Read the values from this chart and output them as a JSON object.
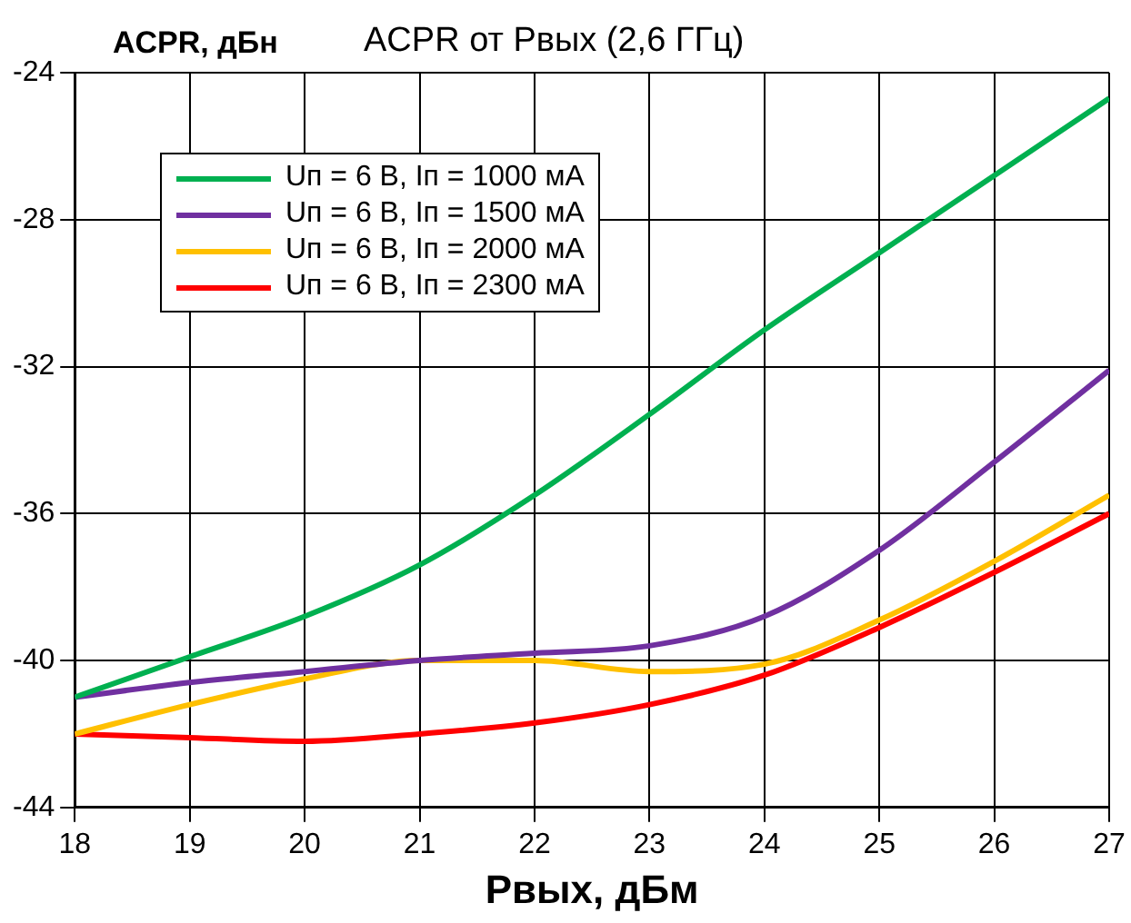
{
  "chart_data": {
    "type": "line",
    "title": "ACPR от Pвых (2,6 ГГц)",
    "ylabel": "ACPR, дБн",
    "xlabel": "Pвых, дБм",
    "x": [
      18,
      19,
      20,
      21,
      22,
      23,
      24,
      25,
      26,
      27
    ],
    "xlim": [
      18,
      27
    ],
    "xticks": [
      18,
      19,
      20,
      21,
      22,
      23,
      24,
      25,
      26,
      27
    ],
    "ylim": [
      -44,
      -24
    ],
    "yticks": [
      -44,
      -40,
      -36,
      -32,
      -28,
      -24
    ],
    "grid": true,
    "legend": "top left",
    "marker": "none",
    "line_style": "solid",
    "series": [
      {
        "name": "Uп = 6 В, Iп = 1000 мА",
        "color": "#00b050",
        "values": [
          -41,
          -39.9,
          -38.8,
          -37.4,
          -35.5,
          -33.3,
          -31.0,
          -28.9,
          -26.8,
          -24.7
        ]
      },
      {
        "name": "Uп = 6 В, Iп = 1500 мА",
        "color": "#7030a0",
        "values": [
          -41,
          -40.6,
          -40.3,
          -40,
          -39.8,
          -39.6,
          -38.8,
          -37,
          -34.6,
          -32.1
        ]
      },
      {
        "name": "Uп = 6 В, Iп = 2000 мА",
        "color": "#ffc000",
        "values": [
          -42,
          -41.2,
          -40.5,
          -40,
          -40,
          -40.3,
          -40.1,
          -38.9,
          -37.3,
          -35.5
        ]
      },
      {
        "name": "Uп = 6 В, Iп = 2300 мА",
        "color": "#ff0000",
        "values": [
          -42,
          -42.1,
          -42.2,
          -42,
          -41.7,
          -41.2,
          -40.4,
          -39.1,
          -37.6,
          -36.0
        ]
      }
    ]
  }
}
